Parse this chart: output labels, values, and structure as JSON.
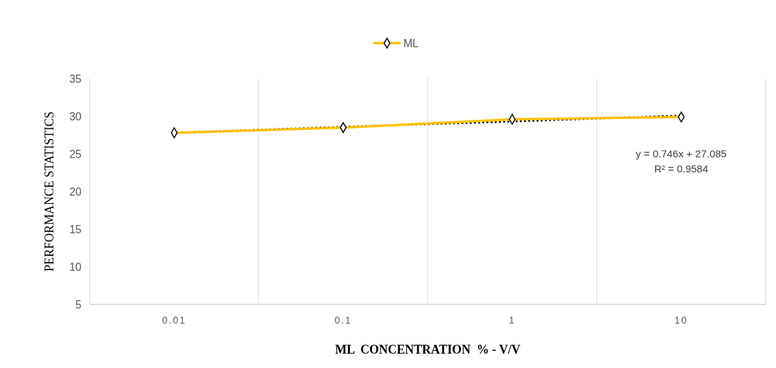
{
  "chart_data": {
    "type": "line",
    "xlabel": "ML  CONCENTRATION  % - V/V",
    "ylabel": "PERFORMANCE STATISTICS",
    "categories": [
      "0.01",
      "0.1",
      "1",
      "10"
    ],
    "series": [
      {
        "name": "ML",
        "color": "#ffc000",
        "values": [
          27.8,
          28.5,
          29.6,
          29.9
        ],
        "marker": "diamond",
        "line_style": "solid"
      },
      {
        "type": "line",
        "color": "#000000",
        "values": [
          27.8,
          28.6,
          29.3,
          30.1
        ],
        "line_style": "dotted"
      }
    ],
    "ylim": [
      5,
      35
    ],
    "yticks": [
      5,
      10,
      15,
      20,
      25,
      30,
      35
    ],
    "grid": "x",
    "legend": "top",
    "annotations": [
      "y = 0.746x + 27.085",
      "R² = 0.9584"
    ]
  }
}
